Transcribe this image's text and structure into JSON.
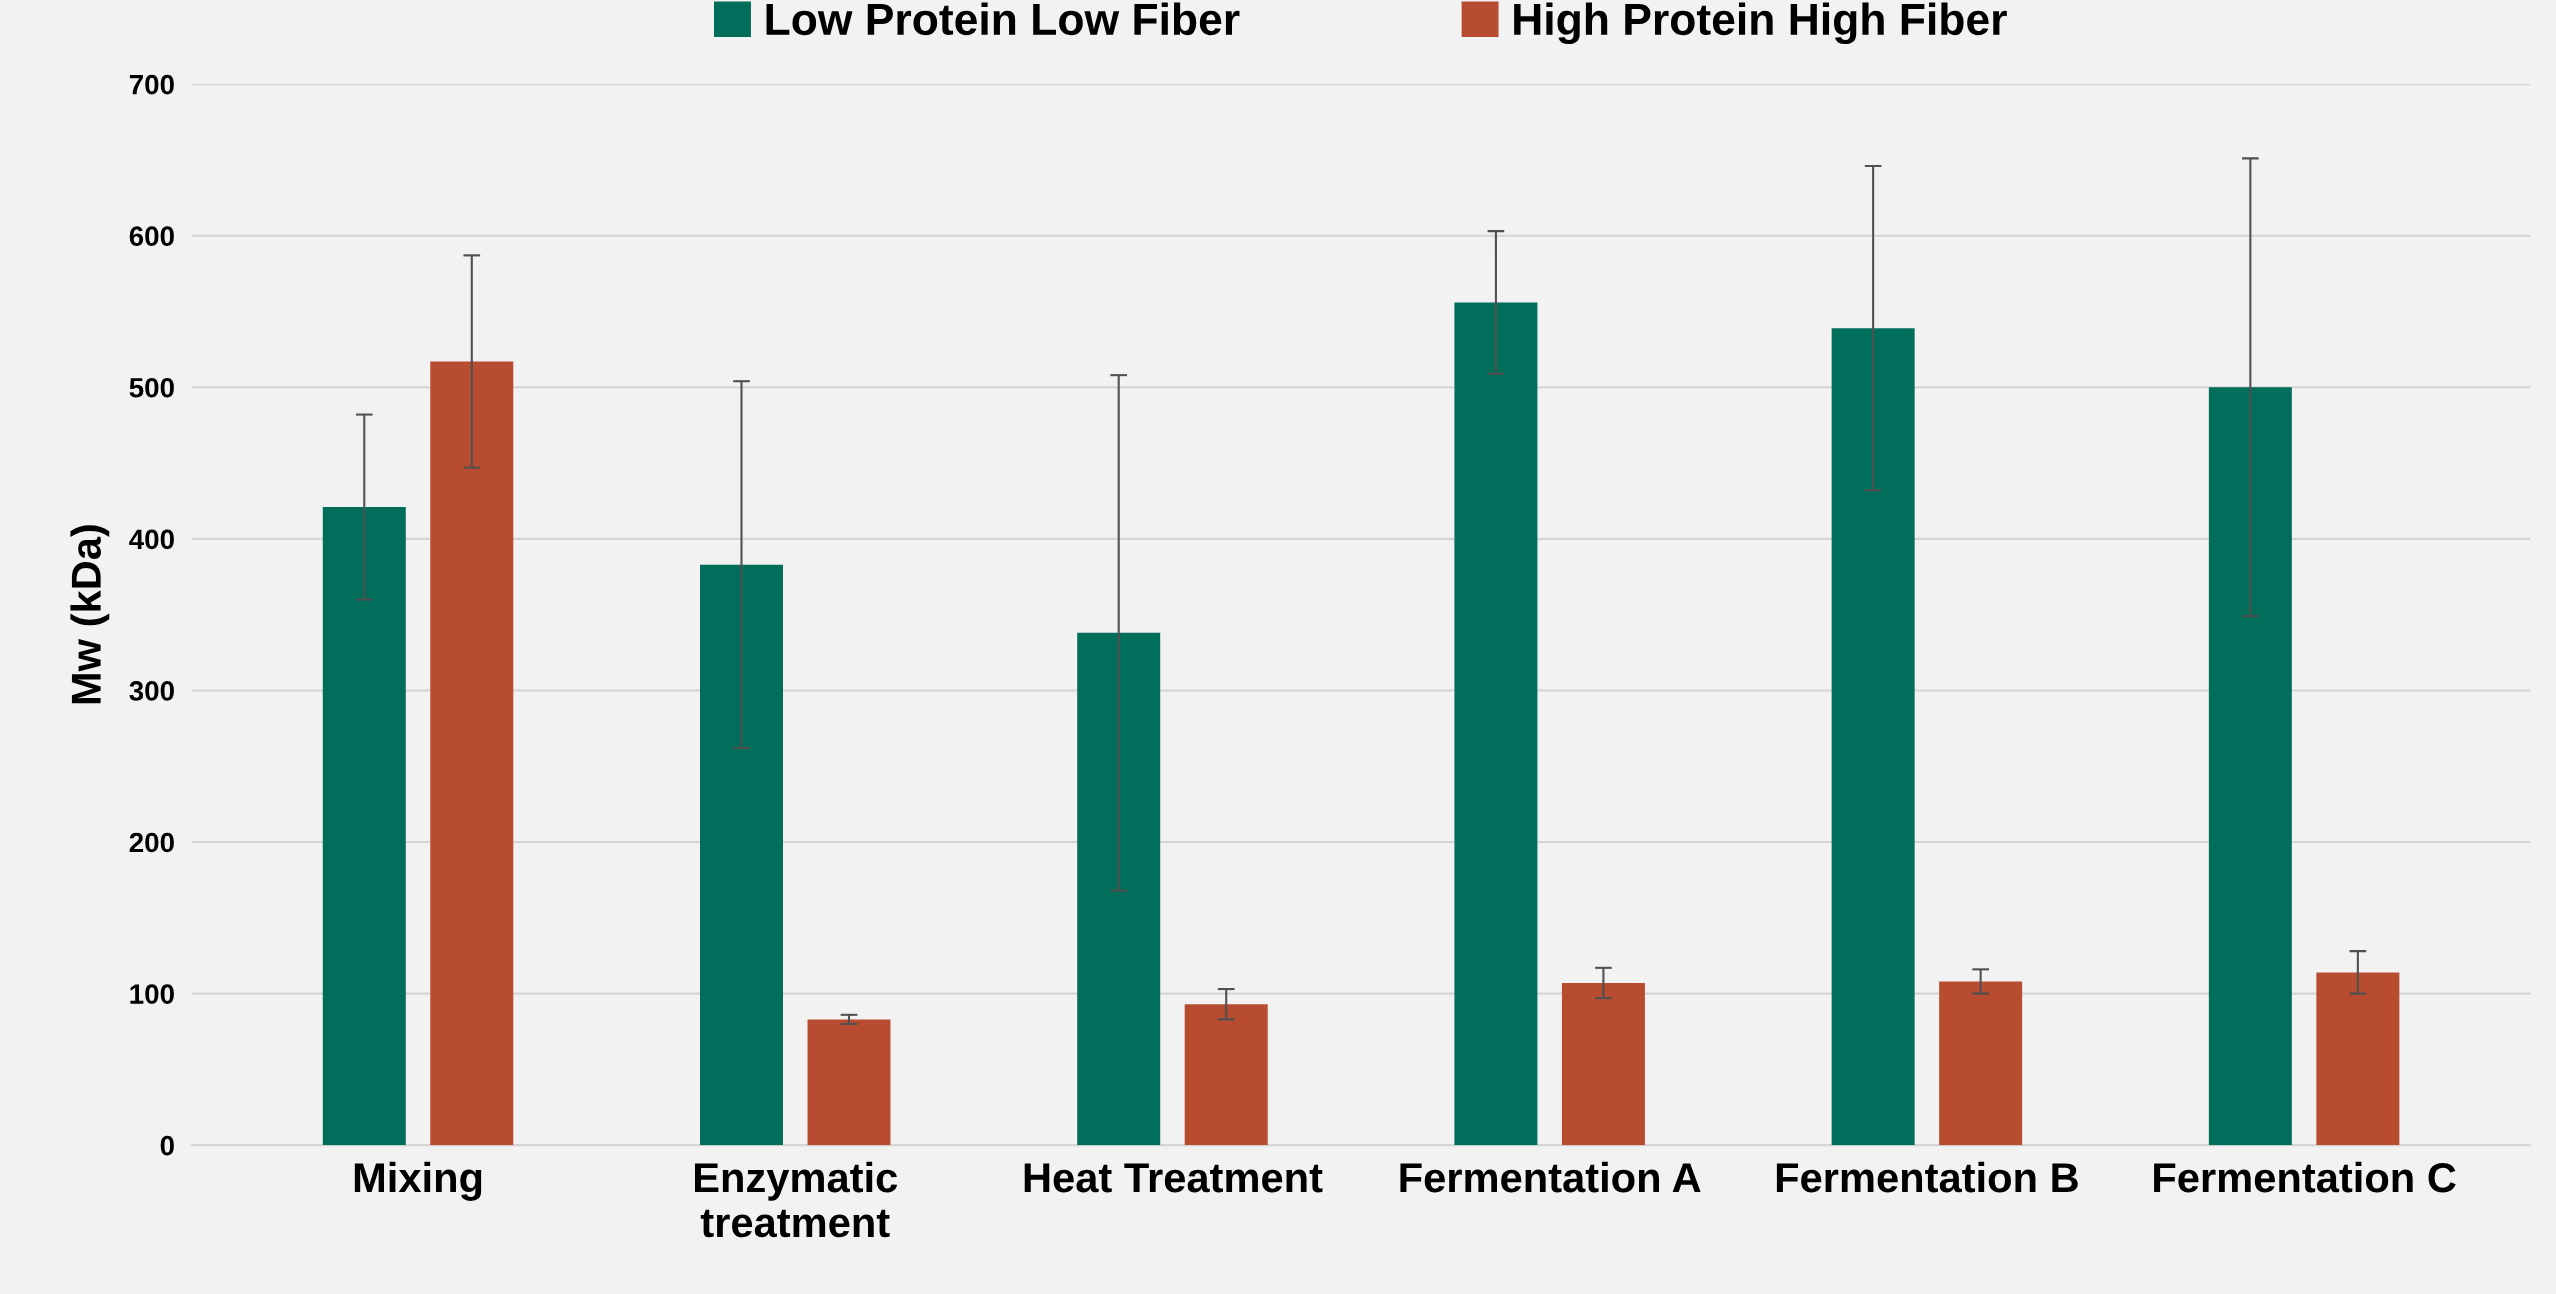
{
  "chart_data": {
    "type": "bar",
    "ylabel": "Mw (kDa)",
    "categories": [
      "Mixing",
      "Enzymatic\ntreatment",
      "Heat Treatment",
      "Fermentation A",
      "Fermentation B",
      "Fermentation C"
    ],
    "series": [
      {
        "name": "Low Protein Low Fiber",
        "color": "#006e5a",
        "values": [
          421,
          383,
          338,
          556,
          539,
          500
        ],
        "errors": [
          61,
          121,
          170,
          47,
          107,
          151
        ]
      },
      {
        "name": "High Protein High Fiber",
        "color": "#b84c30",
        "values": [
          517,
          83,
          93,
          107,
          108,
          114
        ],
        "errors": [
          70,
          3,
          10,
          10,
          8,
          14
        ]
      }
    ],
    "ylim": [
      0,
      700
    ],
    "yticks": [
      0,
      100,
      200,
      300,
      400,
      500,
      600,
      700
    ],
    "grid": "y",
    "legend": "top"
  }
}
